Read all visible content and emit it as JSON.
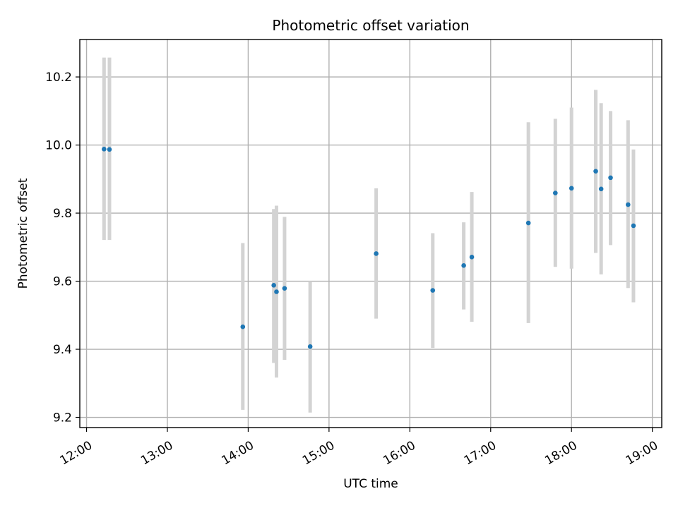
{
  "chart_data": {
    "type": "scatter",
    "title": "Photometric offset variation",
    "xlabel": "UTC time",
    "ylabel": "Photometric offset",
    "xlim": [
      "11:55",
      "19:07"
    ],
    "ylim": [
      9.17,
      10.31
    ],
    "x_ticks": [
      "12:00",
      "13:00",
      "14:00",
      "15:00",
      "16:00",
      "17:00",
      "18:00",
      "19:00"
    ],
    "y_ticks": [
      "9.2",
      "9.4",
      "9.6",
      "9.8",
      "10.0",
      "10.2"
    ],
    "grid": true,
    "colors": {
      "point": "#1f77b4",
      "errorbar": "#d3d3d3",
      "grid": "#b0b0b0",
      "axes": "#000000"
    },
    "points": [
      {
        "x": "12:13",
        "y": 9.988,
        "low": 9.721,
        "high": 10.257
      },
      {
        "x": "12:17",
        "y": 9.987,
        "low": 9.721,
        "high": 10.257
      },
      {
        "x": "13:56",
        "y": 9.466,
        "low": 9.222,
        "high": 9.712
      },
      {
        "x": "14:19",
        "y": 9.588,
        "low": 9.36,
        "high": 9.812
      },
      {
        "x": "14:21",
        "y": 9.569,
        "low": 9.317,
        "high": 9.822
      },
      {
        "x": "14:27",
        "y": 9.579,
        "low": 9.369,
        "high": 9.789
      },
      {
        "x": "14:46",
        "y": 9.408,
        "low": 9.214,
        "high": 9.6
      },
      {
        "x": "15:35",
        "y": 9.681,
        "low": 9.49,
        "high": 9.873
      },
      {
        "x": "16:17",
        "y": 9.573,
        "low": 9.404,
        "high": 9.741
      },
      {
        "x": "16:40",
        "y": 9.646,
        "low": 9.517,
        "high": 9.773
      },
      {
        "x": "16:46",
        "y": 9.671,
        "low": 9.481,
        "high": 9.862
      },
      {
        "x": "17:28",
        "y": 9.771,
        "low": 9.477,
        "high": 10.067
      },
      {
        "x": "17:48",
        "y": 9.859,
        "low": 9.642,
        "high": 10.077
      },
      {
        "x": "18:00",
        "y": 9.873,
        "low": 9.637,
        "high": 10.11
      },
      {
        "x": "18:18",
        "y": 9.923,
        "low": 9.683,
        "high": 10.162
      },
      {
        "x": "18:22",
        "y": 9.871,
        "low": 9.62,
        "high": 10.123
      },
      {
        "x": "18:29",
        "y": 9.904,
        "low": 9.706,
        "high": 10.1
      },
      {
        "x": "18:42",
        "y": 9.825,
        "low": 9.58,
        "high": 10.073
      },
      {
        "x": "18:46",
        "y": 9.763,
        "low": 9.538,
        "high": 9.987
      }
    ]
  }
}
